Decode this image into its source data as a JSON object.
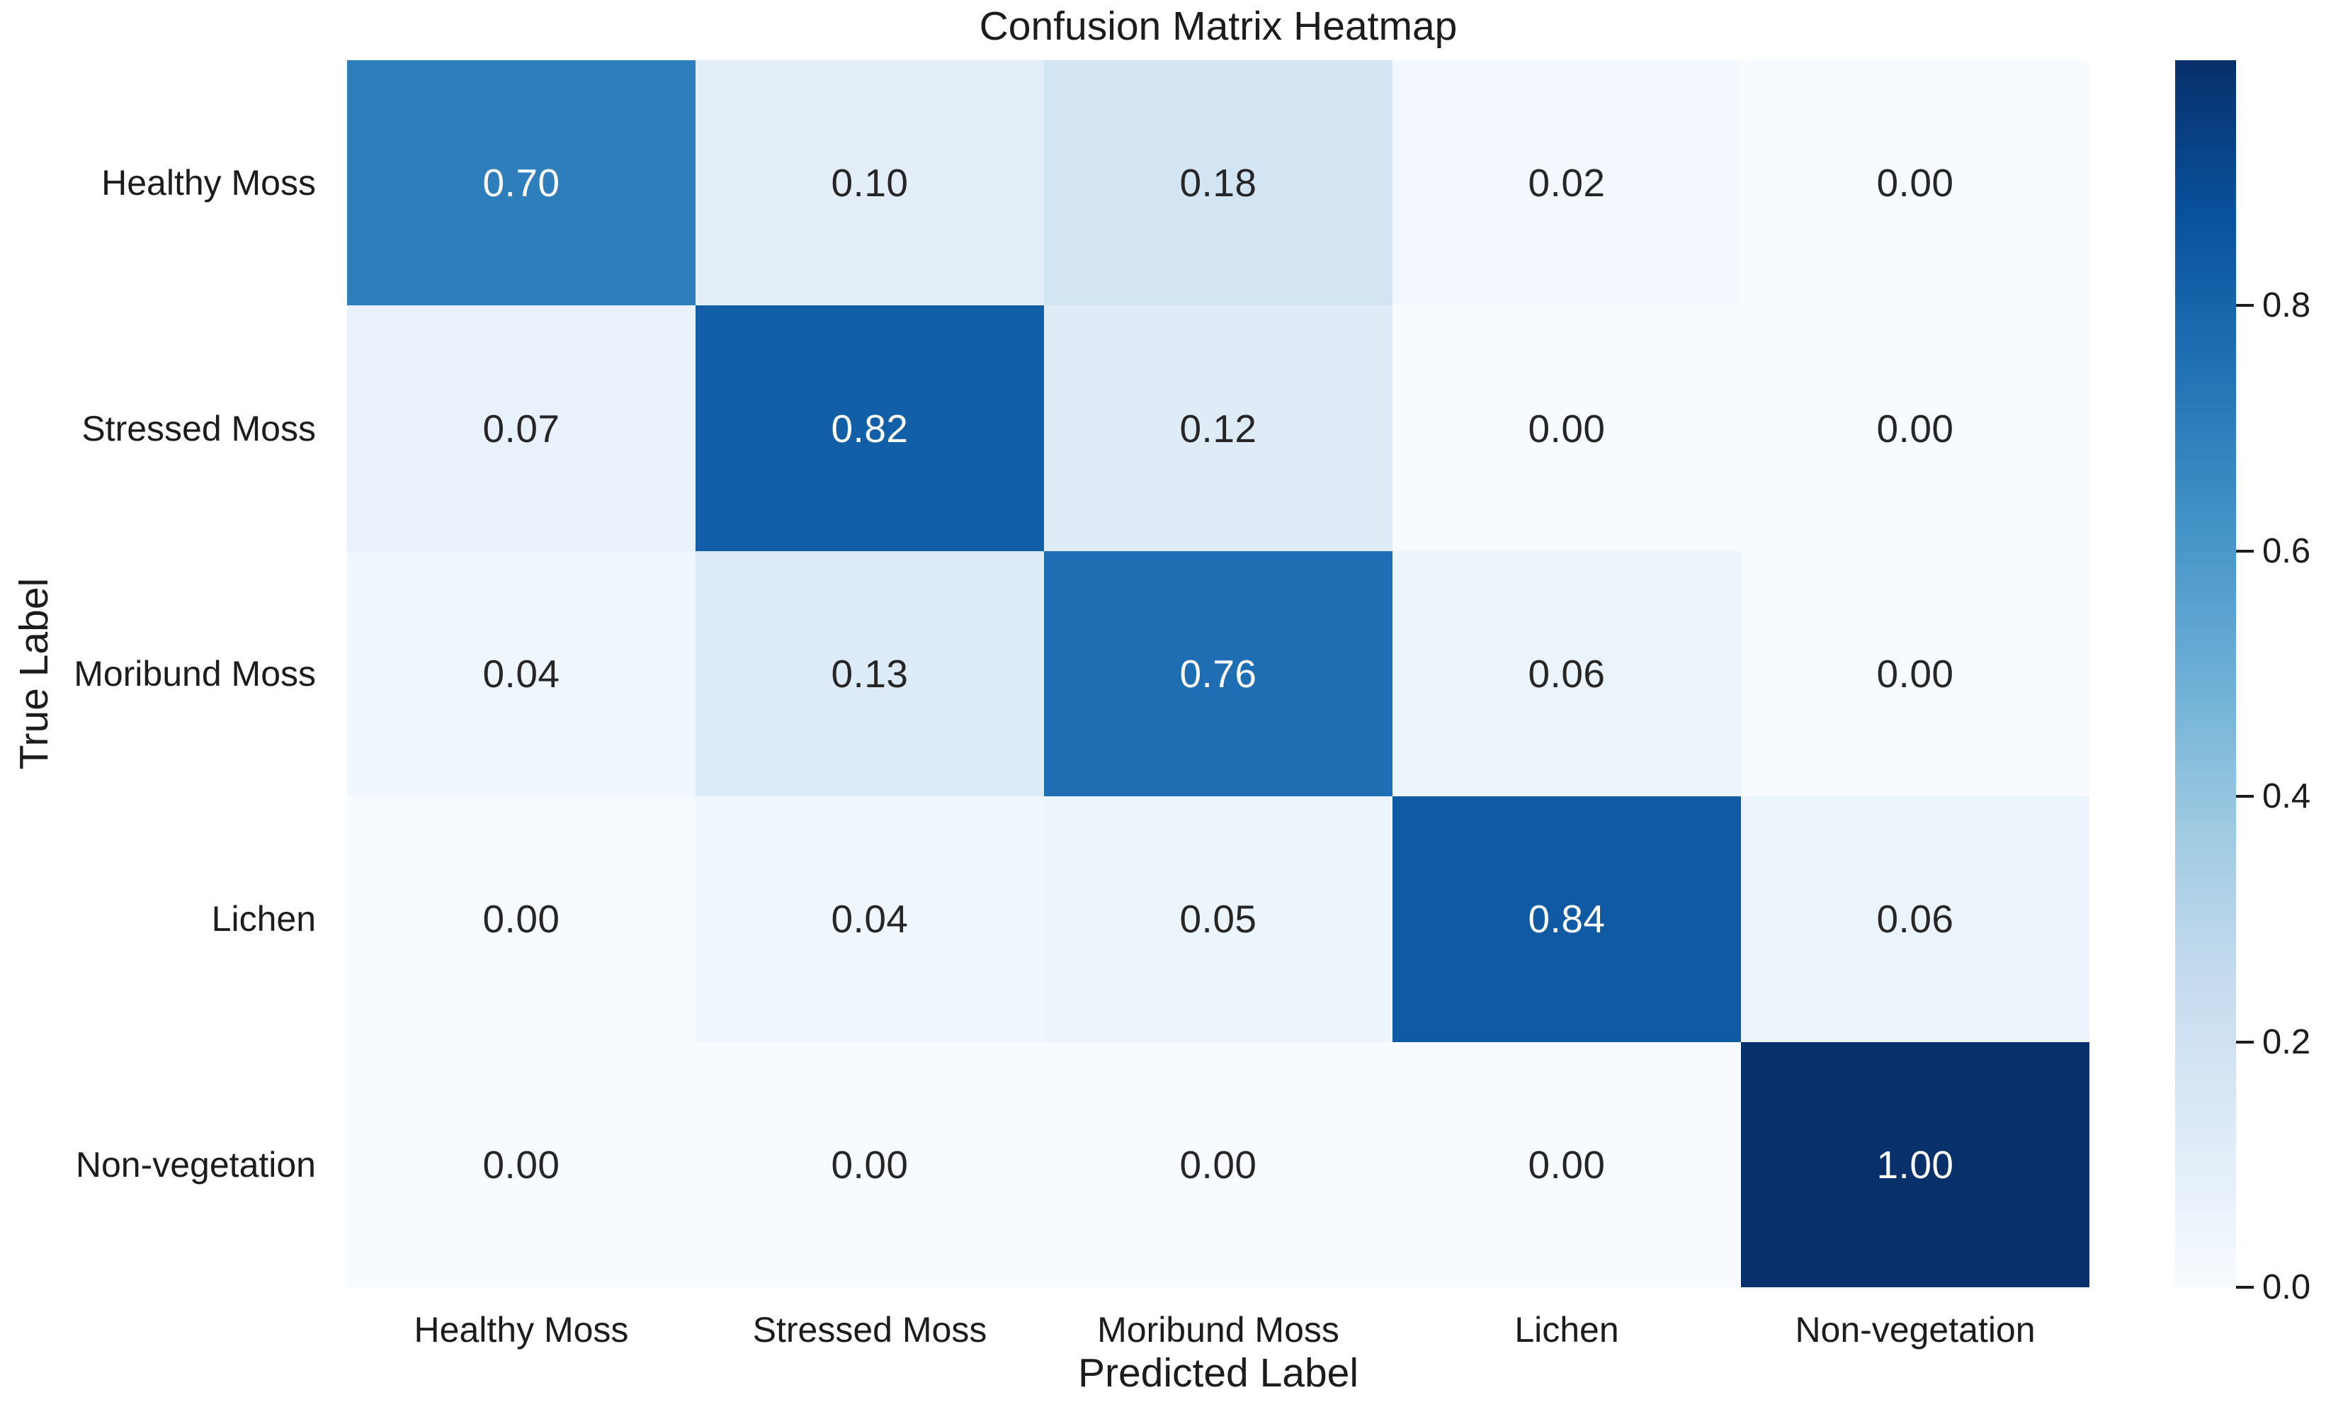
{
  "figure": {
    "background_color": "#ffffff",
    "text_color": "#1c1c1c"
  },
  "chart_data": {
    "type": "heatmap",
    "title": "Confusion Matrix Heatmap",
    "xlabel": "Predicted Label",
    "ylabel": "True Label",
    "x_categories": [
      "Healthy Moss",
      "Stressed Moss",
      "Moribund Moss",
      "Lichen",
      "Non-vegetation"
    ],
    "y_categories": [
      "Healthy Moss",
      "Stressed Moss",
      "Moribund Moss",
      "Lichen",
      "Non-vegetation"
    ],
    "values": [
      [
        0.7,
        0.1,
        0.18,
        0.02,
        0.0
      ],
      [
        0.07,
        0.82,
        0.12,
        0.0,
        0.0
      ],
      [
        0.04,
        0.13,
        0.76,
        0.06,
        0.0
      ],
      [
        0.0,
        0.04,
        0.05,
        0.84,
        0.06
      ],
      [
        0.0,
        0.0,
        0.0,
        0.0,
        1.0
      ]
    ],
    "value_decimals": 2,
    "vmin": 0.0,
    "vmax": 1.0,
    "grid": false,
    "colormap": "Blues",
    "colormap_anchor_colors": [
      "#f7fbff",
      "#deebf7",
      "#c6dbef",
      "#9ecae1",
      "#6baed6",
      "#4292c6",
      "#2171b5",
      "#08519c",
      "#08306b"
    ],
    "annotation_color_on_dark": "#ffffff",
    "annotation_color_on_light": "#262626",
    "legend_position": "right-colorbar",
    "colorbar": {
      "ticks": [
        0.0,
        0.2,
        0.4,
        0.6,
        0.8
      ],
      "tick_labels": [
        "0.0",
        "0.2",
        "0.4",
        "0.6",
        "0.8"
      ]
    }
  }
}
